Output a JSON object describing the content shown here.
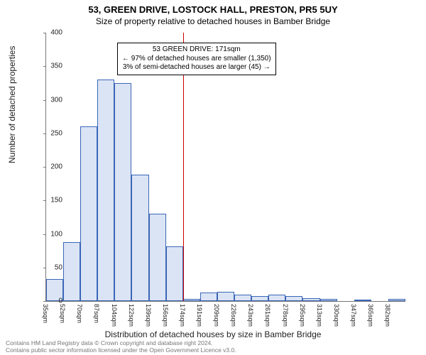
{
  "title_line1": "53, GREEN DRIVE, LOSTOCK HALL, PRESTON, PR5 5UY",
  "title_line2": "Size of property relative to detached houses in Bamber Bridge",
  "ylabel": "Number of detached properties",
  "xlabel": "Distribution of detached houses by size in Bamber Bridge",
  "footer_line1": "Contains HM Land Registry data © Crown copyright and database right 2024.",
  "footer_line2": "Contains public sector information licensed under the Open Government Licence v3.0.",
  "chart": {
    "type": "histogram",
    "ylim": [
      0,
      400
    ],
    "ytick_step": 50,
    "bar_fill": "#dbe4f4",
    "bar_stroke": "#3a66b8",
    "background_color": "#ffffff",
    "axis_color": "#777777",
    "refline_color": "#cc0000",
    "x_start": 35,
    "x_step": 17,
    "bar_count": 21,
    "values": [
      33,
      88,
      260,
      330,
      325,
      188,
      130,
      82,
      3,
      13,
      14,
      10,
      7,
      10,
      7,
      4,
      3,
      0,
      2,
      0,
      3
    ],
    "x_tick_labels": [
      "35sqm",
      "52sqm",
      "70sqm",
      "87sqm",
      "104sqm",
      "122sqm",
      "139sqm",
      "156sqm",
      "174sqm",
      "191sqm",
      "209sqm",
      "226sqm",
      "243sqm",
      "261sqm",
      "278sqm",
      "295sqm",
      "313sqm",
      "330sqm",
      "347sqm",
      "365sqm",
      "382sqm"
    ],
    "refline_value": 171,
    "annot_line1": "53 GREEN DRIVE: 171sqm",
    "annot_line2": "← 97% of detached houses are smaller (1,350)",
    "annot_line3": "3% of semi-detached houses are larger (45) →"
  }
}
